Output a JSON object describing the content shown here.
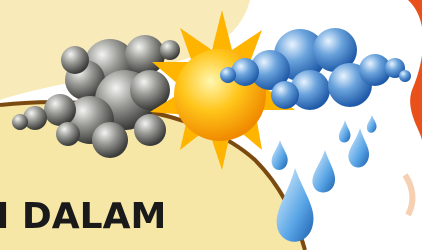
{
  "caption": "I DALAM"
}
